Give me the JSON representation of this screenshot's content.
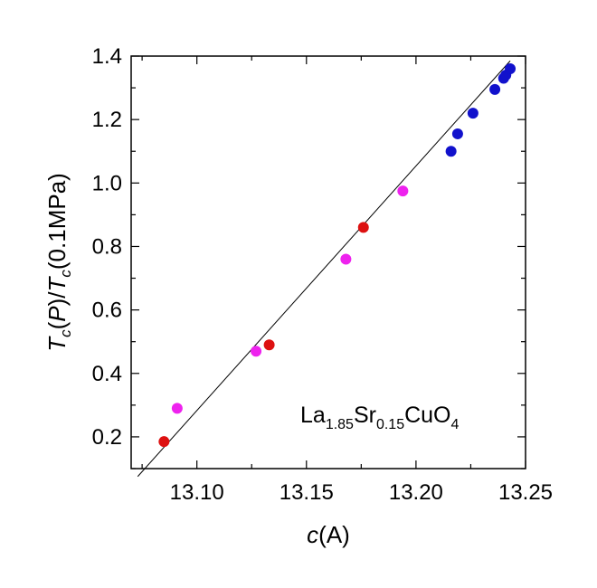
{
  "chart_data": {
    "type": "scatter",
    "title": "",
    "xlabel": {
      "italic": "c",
      "rest": "(A)"
    },
    "ylabel": {
      "parts": [
        "T",
        "c",
        "(",
        "P",
        ")/",
        "T",
        "c",
        "(0.1MPa)"
      ]
    },
    "xlim": [
      13.07,
      13.25
    ],
    "ylim": [
      0.1,
      1.4
    ],
    "x_ticks": [
      13.1,
      13.15,
      13.2,
      13.25
    ],
    "x_tick_labels": [
      "13.10",
      "13.15",
      "13.20",
      "13.25"
    ],
    "y_ticks": [
      0.2,
      0.4,
      0.6,
      0.8,
      1.0,
      1.2,
      1.4
    ],
    "y_tick_labels": [
      "0.2",
      "0.4",
      "0.6",
      "0.8",
      "1.0",
      "1.2",
      "1.4"
    ],
    "grid": false,
    "annotation": {
      "parts": [
        "La",
        "1.85",
        "Sr",
        "0.15",
        "CuO",
        "4"
      ]
    },
    "fit_line": {
      "x": [
        13.073,
        13.243
      ],
      "y": [
        0.075,
        1.385
      ],
      "color": "#000000"
    },
    "series": [
      {
        "color": "#dd1111",
        "x": [
          13.085,
          13.133,
          13.176
        ],
        "y": [
          0.185,
          0.49,
          0.86
        ]
      },
      {
        "color": "#ee22ee",
        "x": [
          13.091,
          13.127,
          13.168,
          13.194
        ],
        "y": [
          0.29,
          0.47,
          0.76,
          0.975
        ]
      },
      {
        "color": "#1111cc",
        "x": [
          13.216,
          13.219,
          13.226,
          13.236,
          13.24,
          13.241,
          13.243
        ],
        "y": [
          1.1,
          1.155,
          1.22,
          1.295,
          1.33,
          1.34,
          1.36
        ]
      }
    ]
  }
}
